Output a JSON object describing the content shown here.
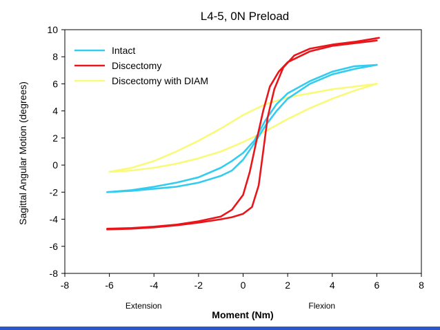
{
  "chart_data": {
    "type": "line",
    "title": "L4-5, 0N Preload",
    "xlabel": "Moment (Nm)",
    "ylabel": "Sagittal Angular Motion (degrees)",
    "xlim": [
      -8,
      8
    ],
    "ylim": [
      -8,
      10
    ],
    "xticks": [
      -8,
      -6,
      -4,
      -2,
      0,
      2,
      4,
      6,
      8
    ],
    "yticks": [
      -8,
      -6,
      -4,
      -2,
      0,
      2,
      4,
      6,
      8,
      10
    ],
    "grid": false,
    "legend_position": "top-left",
    "annotations": [
      {
        "text": "Extension",
        "x": -4,
        "side": "below-axis"
      },
      {
        "text": "Flexion",
        "x": 4,
        "side": "below-axis"
      }
    ],
    "series": [
      {
        "name": "Intact",
        "color": "#33ccee",
        "loops": [
          {
            "x": [
              -6.1,
              -5,
              -4,
              -3,
              -2,
              -1,
              -0.5,
              0,
              0.5,
              1,
              1.5,
              2,
              3,
              4,
              5,
              6
            ],
            "y": [
              -2.0,
              -1.9,
              -1.75,
              -1.6,
              -1.3,
              -0.8,
              -0.4,
              0.4,
              1.6,
              2.9,
              4.0,
              4.9,
              6.0,
              6.7,
              7.1,
              7.4
            ]
          },
          {
            "x": [
              6,
              5,
              4,
              3,
              2,
              1.5,
              1,
              0.5,
              0,
              -0.5,
              -1,
              -2,
              -3,
              -4,
              -5,
              -6.1
            ],
            "y": [
              7.4,
              7.3,
              6.9,
              6.2,
              5.3,
              4.5,
              3.3,
              1.8,
              0.9,
              0.3,
              -0.2,
              -0.9,
              -1.3,
              -1.6,
              -1.85,
              -2.0
            ]
          }
        ]
      },
      {
        "name": "Discectomy",
        "color": "#e8161b",
        "loops": [
          {
            "x": [
              -6.1,
              -5,
              -4,
              -3,
              -2,
              -1,
              -0.5,
              0,
              0.3,
              0.6,
              0.9,
              1.2,
              1.6,
              2,
              3,
              4,
              5,
              6
            ],
            "y": [
              -4.7,
              -4.65,
              -4.55,
              -4.4,
              -4.15,
              -3.8,
              -3.3,
              -2.2,
              -0.5,
              1.8,
              4.0,
              5.8,
              6.9,
              7.6,
              8.4,
              8.8,
              9.0,
              9.2
            ]
          },
          {
            "x": [
              6.1,
              5,
              4,
              3,
              2.3,
              1.8,
              1.4,
              1.1,
              0.9,
              0.7,
              0.4,
              0,
              -0.5,
              -1,
              -2,
              -3,
              -4,
              -5,
              -6.1
            ],
            "y": [
              9.4,
              9.1,
              8.9,
              8.6,
              8.1,
              7.2,
              5.6,
              3.5,
              1.0,
              -1.5,
              -3.1,
              -3.6,
              -3.85,
              -4.0,
              -4.25,
              -4.45,
              -4.6,
              -4.7,
              -4.75
            ]
          }
        ]
      },
      {
        "name": "Discectomy with DIAM",
        "color": "#fafa7a",
        "loops": [
          {
            "x": [
              -6,
              -5,
              -4,
              -3,
              -2,
              -1,
              0,
              1,
              2,
              3,
              4,
              5,
              6
            ],
            "y": [
              -0.5,
              -0.4,
              -0.2,
              0.1,
              0.5,
              1.0,
              1.7,
              2.5,
              3.4,
              4.2,
              4.9,
              5.5,
              6.0
            ]
          },
          {
            "x": [
              6,
              5,
              4,
              3,
              2,
              1,
              0,
              -1,
              -2,
              -3,
              -4,
              -5,
              -6
            ],
            "y": [
              6.0,
              5.8,
              5.6,
              5.3,
              5.0,
              4.5,
              3.7,
              2.7,
              1.8,
              1.0,
              0.3,
              -0.2,
              -0.5
            ]
          }
        ]
      }
    ]
  }
}
